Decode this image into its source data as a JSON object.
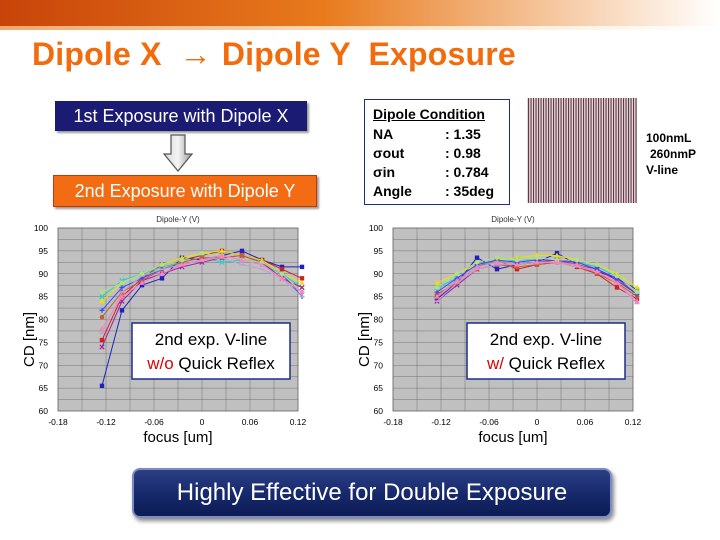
{
  "slide": {
    "title_left": "Dipole X",
    "title_arrow": "→",
    "title_right": "Dipole Y  Exposure",
    "step1": "1st Exposure with Dipole X",
    "step2": "2nd Exposure with Dipole Y",
    "condition": {
      "title": "Dipole Condition",
      "rows": [
        {
          "label": "NA",
          "value": ": 1.35"
        },
        {
          "label": "σout",
          "value": ": 0.98"
        },
        {
          "label": "σin",
          "value": ": 0.784"
        },
        {
          "label": "Angle",
          "value": ": 35deg"
        }
      ]
    },
    "pattern_labels": [
      "100nmL",
      "260nmP",
      "V-line"
    ],
    "conclusion": "Highly Effective for Double Exposure"
  },
  "colors": {
    "title": "#f26c0d",
    "step1_bg": "#1b1b74",
    "step2_bg": "#f36b12",
    "plot_bg": "#c0c0c0",
    "red_text": "#e00000"
  },
  "chart_data": [
    {
      "type": "line",
      "title": "Dipole-Y (V)",
      "xlabel": "focus [um]",
      "ylabel": "CD [nm]",
      "xlim": [
        -0.18,
        0.12
      ],
      "ylim": [
        60,
        100
      ],
      "xticks": [
        "-0.18",
        "-0.12",
        "-0.06",
        "0",
        "0.06",
        "0.12"
      ],
      "yticks": [
        "60",
        "65",
        "70",
        "75",
        "80",
        "85",
        "90",
        "95",
        "100"
      ],
      "grid": true,
      "annotation": {
        "line1": "2nd exp. V-line",
        "red": "w/o",
        "rest": " Quick Reflex"
      },
      "x": [
        -0.125,
        -0.1,
        -0.075,
        -0.05,
        -0.025,
        0,
        0.025,
        0.05,
        0.075,
        0.1,
        0.125
      ],
      "series": [
        {
          "color": "#2020c0",
          "marker": "square",
          "values": [
            65.5,
            82,
            87.5,
            89,
            93.5,
            93,
            94,
            95,
            93,
            91.5,
            91.5
          ]
        },
        {
          "color": "#d02020",
          "marker": "square",
          "values": [
            75.5,
            85,
            89,
            92,
            93,
            94,
            95,
            94,
            93,
            91,
            89
          ]
        },
        {
          "color": "#f0e000",
          "marker": "triangle",
          "values": [
            84,
            88,
            90,
            92,
            93.5,
            94.5,
            95,
            94,
            93,
            90,
            88
          ]
        },
        {
          "color": "#20d0d0",
          "marker": "x",
          "values": [
            85,
            88.5,
            90,
            91.5,
            92.5,
            93.5,
            92.5,
            93,
            92,
            90,
            87
          ]
        },
        {
          "color": "#a020a0",
          "marker": "x",
          "values": [
            74,
            84,
            88.5,
            90,
            91.5,
            92.5,
            93.5,
            94,
            92.5,
            89,
            87
          ]
        },
        {
          "color": "#c06030",
          "marker": "circle",
          "values": [
            80.5,
            86,
            88.5,
            91,
            92.5,
            93.5,
            93.5,
            94,
            92.5,
            90,
            86
          ]
        },
        {
          "color": "#3050ff",
          "marker": "plus",
          "values": [
            82,
            87,
            89,
            91,
            92,
            93,
            94,
            93,
            92.5,
            90,
            85
          ]
        },
        {
          "color": "#c0a0d0",
          "marker": "dash",
          "values": [
            77,
            86,
            89.5,
            91,
            92,
            93,
            93.5,
            92,
            91,
            89,
            85
          ]
        },
        {
          "color": "#b0e080",
          "marker": "circle",
          "values": [
            86,
            88,
            90,
            92,
            93,
            94.5,
            94,
            93,
            92.5,
            90,
            86
          ]
        },
        {
          "color": "#ff80c0",
          "marker": "triangle",
          "values": [
            78,
            85,
            88,
            90,
            92,
            93,
            94,
            93,
            92,
            89,
            86
          ]
        }
      ]
    },
    {
      "type": "line",
      "title": "Dipole-Y (V)",
      "xlabel": "focus [um]",
      "ylabel": "CD [nm]",
      "xlim": [
        -0.18,
        0.12
      ],
      "ylim": [
        60,
        100
      ],
      "xticks": [
        "-0.18",
        "-0.12",
        "-0.06",
        "0",
        "0.06",
        "0.12"
      ],
      "yticks": [
        "60",
        "65",
        "70",
        "75",
        "80",
        "85",
        "90",
        "95",
        "100"
      ],
      "grid": true,
      "annotation": {
        "line1": "2nd exp. V-line",
        "red": "w/",
        "rest": " Quick Reflex"
      },
      "x": [
        -0.125,
        -0.1,
        -0.075,
        -0.05,
        -0.025,
        0,
        0.025,
        0.05,
        0.075,
        0.1,
        0.125
      ],
      "series": [
        {
          "color": "#2020c0",
          "marker": "square",
          "values": [
            84.5,
            88,
            93.5,
            91,
            92,
            92.5,
            94.5,
            92,
            90.5,
            89,
            86.5
          ]
        },
        {
          "color": "#d02020",
          "marker": "square",
          "values": [
            85,
            88.5,
            91.5,
            93,
            91,
            92,
            92.5,
            91.5,
            90,
            87,
            84.5
          ]
        },
        {
          "color": "#f0e000",
          "marker": "triangle",
          "values": [
            88,
            90,
            92,
            93,
            93.5,
            94,
            94,
            93,
            92,
            90,
            87
          ]
        },
        {
          "color": "#20d0d0",
          "marker": "x",
          "values": [
            87,
            89,
            92,
            92.5,
            93,
            93,
            93,
            92.5,
            91.5,
            89.5,
            86
          ]
        },
        {
          "color": "#a020a0",
          "marker": "x",
          "values": [
            84,
            87.5,
            91,
            92,
            92,
            92.5,
            93,
            92,
            91,
            88.5,
            85.5
          ]
        },
        {
          "color": "#c06030",
          "marker": "circle",
          "values": [
            85.5,
            88,
            91,
            92,
            91.5,
            92,
            92.5,
            92,
            90,
            88,
            85
          ]
        },
        {
          "color": "#3050ff",
          "marker": "plus",
          "values": [
            86,
            89,
            92,
            93,
            92.5,
            93,
            93,
            92.5,
            91,
            89,
            85.5
          ]
        },
        {
          "color": "#c0a0d0",
          "marker": "dash",
          "values": [
            84,
            88,
            91,
            92,
            92,
            92.5,
            92.5,
            91.5,
            90.5,
            88,
            83.5
          ]
        },
        {
          "color": "#b0e080",
          "marker": "circle",
          "values": [
            87,
            90,
            92.5,
            93.5,
            93,
            93.5,
            93,
            93,
            92,
            89.5,
            86
          ]
        },
        {
          "color": "#ff80c0",
          "marker": "triangle",
          "values": [
            85,
            88.5,
            91.5,
            92.5,
            92,
            92.5,
            92.5,
            92,
            90.5,
            88,
            84
          ]
        }
      ]
    }
  ]
}
